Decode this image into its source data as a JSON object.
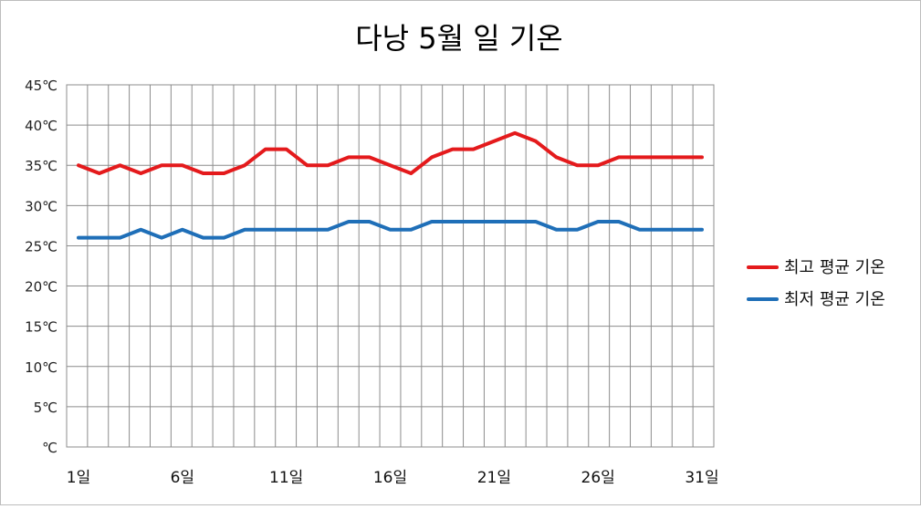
{
  "chart_data": {
    "type": "line",
    "title": "다낭 5월 일 기온",
    "xlabel": "",
    "ylabel": "",
    "x": [
      1,
      2,
      3,
      4,
      5,
      6,
      7,
      8,
      9,
      10,
      11,
      12,
      13,
      14,
      15,
      16,
      17,
      18,
      19,
      20,
      21,
      22,
      23,
      24,
      25,
      26,
      27,
      28,
      29,
      30,
      31
    ],
    "x_tick_labels": [
      "1일",
      "6일",
      "11일",
      "16일",
      "21일",
      "26일",
      "31일"
    ],
    "x_tick_values": [
      1,
      6,
      11,
      16,
      21,
      26,
      31
    ],
    "y_tick_labels": [
      "℃",
      "5℃",
      "10℃",
      "15℃",
      "20℃",
      "25℃",
      "30℃",
      "35℃",
      "40℃",
      "45℃"
    ],
    "ylim": [
      0,
      45
    ],
    "grid": true,
    "legend_position": "right",
    "series": [
      {
        "name": "최고 평균 기온",
        "color": "#e41a1c",
        "values": [
          35,
          34,
          35,
          34,
          35,
          35,
          34,
          34,
          35,
          37,
          37,
          35,
          35,
          36,
          36,
          35,
          34,
          36,
          37,
          37,
          38,
          39,
          38,
          36,
          35,
          35,
          36,
          36,
          36,
          36,
          36
        ]
      },
      {
        "name": "최저 평균 기온",
        "color": "#1f6fb8",
        "values": [
          26,
          26,
          26,
          27,
          26,
          27,
          26,
          26,
          27,
          27,
          27,
          27,
          27,
          28,
          28,
          27,
          27,
          28,
          28,
          28,
          28,
          28,
          28,
          27,
          27,
          28,
          28,
          27,
          27,
          27,
          27
        ]
      }
    ]
  }
}
